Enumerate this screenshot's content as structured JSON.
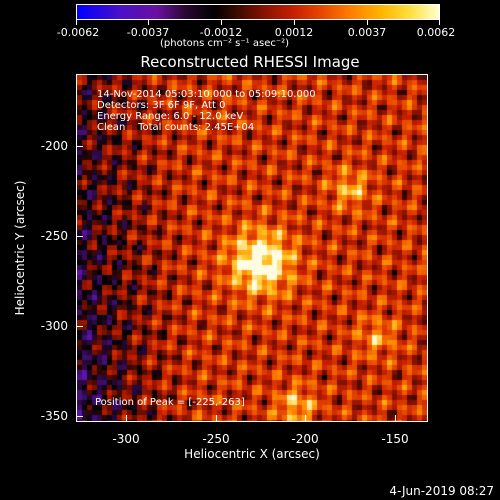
{
  "colorbar": {
    "labels": [
      "-0.0062",
      "-0.0037",
      "-0.0012",
      "0.0012",
      "0.0037",
      "0.0062"
    ],
    "units": "(photons cm⁻² s⁻¹ asec⁻²)"
  },
  "title": "Reconstructed RHESSI Image",
  "annotations": {
    "time": "14-Nov-2014 05:03:10.000 to 05:09:10.000",
    "detectors": "Detectors: 3F 6F 9F, Att 0",
    "energy": "Energy Range: 6.0 - 12.0 keV",
    "clean": "Clean    Total counts: 2.45E+04",
    "peak": "Position of Peak = [-225,-263]"
  },
  "axes": {
    "xlabel": "Heliocentric X (arcsec)",
    "ylabel": "Heliocentric Y (arcsec)",
    "xticks": [
      "-300",
      "-250",
      "-200",
      "-150"
    ],
    "yticks": [
      "-200",
      "-250",
      "-300",
      "-350"
    ],
    "xrange": [
      -328,
      -132
    ],
    "yrange": [
      -352,
      -158
    ]
  },
  "image": {
    "colors": {
      "bright": "#fffbe0",
      "negative": "#5a14a8"
    },
    "peak": {
      "x": -225,
      "y": -263
    },
    "secondary_sources": [
      {
        "x": -175,
        "y": -222,
        "level": 0.55
      },
      {
        "x": -205,
        "y": -344,
        "level": 0.6
      },
      {
        "x": -160,
        "y": -305,
        "level": 0.45
      }
    ]
  },
  "footer": {
    "date": "4-Jun-2019 08:27"
  }
}
